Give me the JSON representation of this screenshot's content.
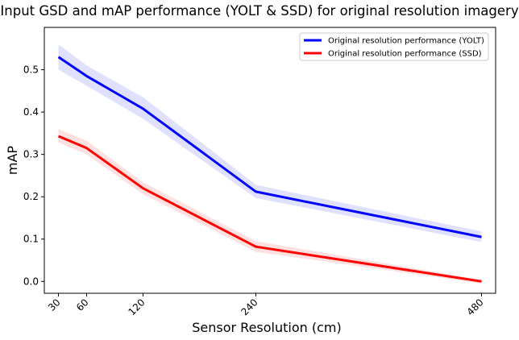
{
  "chart_data": {
    "type": "line",
    "title": "Input GSD and mAP performance (YOLT & SSD) for original resolution imagery",
    "xlabel": "Sensor Resolution (cm)",
    "ylabel": "mAP",
    "x": [
      30,
      60,
      120,
      240,
      480
    ],
    "x_tick_labels": [
      "30",
      "60",
      "120",
      "240",
      "480"
    ],
    "xlim": [
      15,
      495
    ],
    "ylim": [
      -0.028,
      0.6
    ],
    "y_ticks": [
      0.0,
      0.1,
      0.2,
      0.3,
      0.4,
      0.5
    ],
    "y_tick_labels": [
      "0.0",
      "0.1",
      "0.2",
      "0.3",
      "0.4",
      "0.5"
    ],
    "legend_position": "top-right",
    "grid": false,
    "series": [
      {
        "name": "Original resolution performance (YOLT)",
        "color": "#0000ff",
        "band_color": "#0000ff",
        "values": [
          0.53,
          0.485,
          0.408,
          0.212,
          0.105
        ],
        "lower": [
          0.5,
          0.462,
          0.384,
          0.197,
          0.093
        ],
        "upper": [
          0.56,
          0.51,
          0.435,
          0.228,
          0.118
        ]
      },
      {
        "name": "Original resolution performance (SSD)",
        "color": "#ff0000",
        "band_color": "#ff0000",
        "values": [
          0.343,
          0.315,
          0.22,
          0.082,
          0.0
        ],
        "lower": [
          0.328,
          0.3,
          0.206,
          0.07,
          -0.005
        ],
        "upper": [
          0.36,
          0.332,
          0.234,
          0.095,
          0.004
        ]
      }
    ]
  }
}
